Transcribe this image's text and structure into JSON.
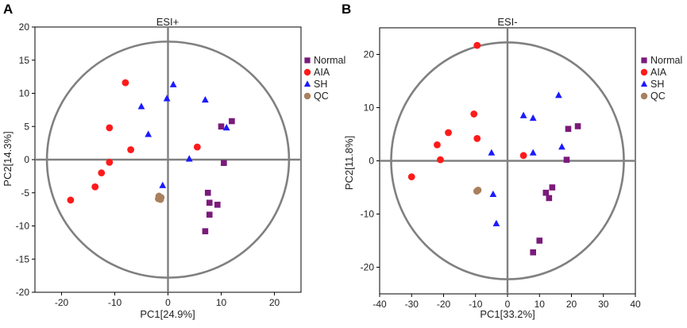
{
  "chart_data": [
    {
      "type": "scatter",
      "panel": "A",
      "title": "ESI+",
      "xlabel": "PC1[24.9%]",
      "ylabel": "PC2[14.3%]",
      "xlim": [
        -25,
        25
      ],
      "ylim": [
        -20,
        20
      ],
      "xticks": [
        -20,
        -10,
        0,
        10,
        20
      ],
      "yticks": [
        -20,
        -15,
        -10,
        -5,
        0,
        5,
        10,
        15,
        20
      ],
      "legend_position": "right",
      "series": [
        {
          "name": "Normal",
          "marker": "square",
          "color": "#7a1a7a",
          "points": [
            [
              10,
              5
            ],
            [
              12,
              5.8
            ],
            [
              10.5,
              -0.5
            ],
            [
              7.5,
              -5
            ],
            [
              7.8,
              -6.5
            ],
            [
              9.3,
              -6.8
            ],
            [
              7.8,
              -8.3
            ],
            [
              7,
              -10.8
            ]
          ]
        },
        {
          "name": "AIA",
          "marker": "circle",
          "color": "#ff1a1a",
          "points": [
            [
              -8,
              11.6
            ],
            [
              -11,
              4.8
            ],
            [
              -7,
              1.5
            ],
            [
              -11,
              -0.4
            ],
            [
              -12.5,
              -2
            ],
            [
              -13.7,
              -4.1
            ],
            [
              -18.3,
              -6.1
            ],
            [
              5.5,
              1.9
            ]
          ]
        },
        {
          "name": "SH",
          "marker": "triangle",
          "color": "#1a1aff",
          "points": [
            [
              1,
              11.3
            ],
            [
              -0.2,
              9.2
            ],
            [
              -5,
              8
            ],
            [
              7,
              9
            ],
            [
              -3.7,
              3.8
            ],
            [
              11,
              4.8
            ],
            [
              4,
              0.1
            ],
            [
              -1,
              -3.9
            ]
          ]
        },
        {
          "name": "QC",
          "marker": "circle",
          "color": "#a9805e",
          "points": [
            [
              -1.7,
              -5.5
            ],
            [
              -1.4,
              -6
            ],
            [
              -1.8,
              -5.9
            ],
            [
              -1.3,
              -5.7
            ]
          ]
        }
      ]
    },
    {
      "type": "scatter",
      "panel": "B",
      "title": "ESI-",
      "xlabel": "PC1[33.2%]",
      "ylabel": "PC2[11.8%]",
      "xlim": [
        -40,
        40
      ],
      "ylim": [
        -25,
        25
      ],
      "xticks": [
        -40,
        -30,
        -20,
        -10,
        0,
        10,
        20,
        30,
        40
      ],
      "yticks": [
        -20,
        -10,
        0,
        10,
        20
      ],
      "legend_position": "right",
      "series": [
        {
          "name": "Normal",
          "marker": "square",
          "color": "#7a1a7a",
          "points": [
            [
              19,
              6
            ],
            [
              22,
              6.5
            ],
            [
              18.5,
              0.2
            ],
            [
              14,
              -5
            ],
            [
              12,
              -6
            ],
            [
              13,
              -7
            ],
            [
              10,
              -15
            ],
            [
              8,
              -17.2
            ]
          ]
        },
        {
          "name": "AIA",
          "marker": "circle",
          "color": "#ff1a1a",
          "points": [
            [
              -9.5,
              21.7
            ],
            [
              -10.5,
              8.8
            ],
            [
              -18.5,
              5.3
            ],
            [
              -22,
              3
            ],
            [
              -21,
              0.2
            ],
            [
              -30,
              -3
            ],
            [
              -9.5,
              4.2
            ],
            [
              5,
              1
            ]
          ]
        },
        {
          "name": "SH",
          "marker": "triangle",
          "color": "#1a1aff",
          "points": [
            [
              16,
              12.3
            ],
            [
              5,
              8.5
            ],
            [
              8,
              8
            ],
            [
              -5,
              1.5
            ],
            [
              8,
              1.5
            ],
            [
              17,
              2.6
            ],
            [
              -4.5,
              -6.3
            ],
            [
              -3.5,
              -11.8
            ]
          ]
        },
        {
          "name": "QC",
          "marker": "circle",
          "color": "#a9805e",
          "points": [
            [
              -9.2,
              -5.5
            ],
            [
              -9.6,
              -5.7
            ]
          ]
        }
      ]
    }
  ]
}
